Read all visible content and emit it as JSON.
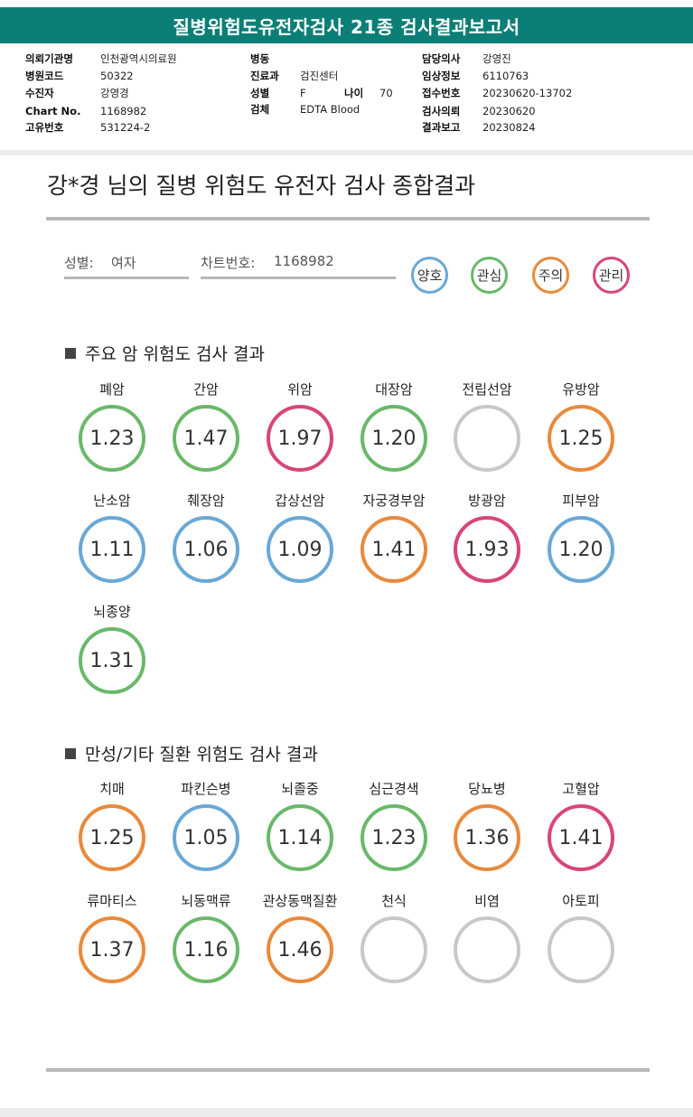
{
  "report": {
    "title": "질병위험도유전자검사 21종 검사결과보고서",
    "fields": {
      "institution_label": "의뢰기관명",
      "institution": "인천광역시의료원",
      "hospital_code_label": "병원코드",
      "hospital_code": "50322",
      "patient_label": "수진자",
      "patient": "강영경",
      "chart_label": "Chart No.",
      "chart": "1168982",
      "unique_label": "고유번호",
      "unique": "531224-2",
      "ward_label": "병동",
      "ward": "",
      "dept_label": "진료과",
      "dept": "검진센터",
      "sex_label": "성별",
      "sex": "F",
      "age_label": "나이",
      "age": "70",
      "specimen_label": "검체",
      "specimen": "EDTA Blood",
      "doctor_label": "담당의사",
      "doctor": "강영진",
      "clinical_label": "임상정보",
      "clinical": "6110763",
      "receipt_label": "접수번호",
      "receipt": "20230620-13702",
      "request_label": "검사의뢰",
      "request": "20230620",
      "result_label": "결과보고",
      "result": "20230824"
    }
  },
  "summary": {
    "heading": "강*경 님의 질병 위험도 유전자 검사 종합결과",
    "sex_label": "성별:",
    "sex_value": "여자",
    "chart_label": "차트번호:",
    "chart_value": "1168982"
  },
  "legend": [
    {
      "label": "양호",
      "color": "#6aa8d6"
    },
    {
      "label": "관심",
      "color": "#6ab86a"
    },
    {
      "label": "주의",
      "color": "#e88a3c"
    },
    {
      "label": "관리",
      "color": "#d8457a"
    }
  ],
  "colors": {
    "good": "#6aa8d6",
    "interest": "#6ab86a",
    "caution": "#e88a3c",
    "manage": "#d8457a",
    "none": "#c8c8c8"
  },
  "cancer": {
    "title": "주요 암 위험도 검사 결과",
    "items": [
      {
        "name": "폐암",
        "value": "1.23",
        "level": "interest"
      },
      {
        "name": "간암",
        "value": "1.47",
        "level": "interest"
      },
      {
        "name": "위암",
        "value": "1.97",
        "level": "manage"
      },
      {
        "name": "대장암",
        "value": "1.20",
        "level": "interest"
      },
      {
        "name": "전립선암",
        "value": "",
        "level": "none"
      },
      {
        "name": "유방암",
        "value": "1.25",
        "level": "caution"
      },
      {
        "name": "난소암",
        "value": "1.11",
        "level": "good"
      },
      {
        "name": "췌장암",
        "value": "1.06",
        "level": "good"
      },
      {
        "name": "갑상선암",
        "value": "1.09",
        "level": "good"
      },
      {
        "name": "자궁경부암",
        "value": "1.41",
        "level": "caution"
      },
      {
        "name": "방광암",
        "value": "1.93",
        "level": "manage"
      },
      {
        "name": "피부암",
        "value": "1.20",
        "level": "good"
      },
      {
        "name": "뇌종양",
        "value": "1.31",
        "level": "interest"
      }
    ]
  },
  "chronic": {
    "title": "만성/기타 질환 위험도 검사 결과",
    "items": [
      {
        "name": "치매",
        "value": "1.25",
        "level": "caution"
      },
      {
        "name": "파킨슨병",
        "value": "1.05",
        "level": "good"
      },
      {
        "name": "뇌졸중",
        "value": "1.14",
        "level": "interest"
      },
      {
        "name": "심근경색",
        "value": "1.23",
        "level": "interest"
      },
      {
        "name": "당뇨병",
        "value": "1.36",
        "level": "caution"
      },
      {
        "name": "고혈압",
        "value": "1.41",
        "level": "manage"
      },
      {
        "name": "류마티스",
        "value": "1.37",
        "level": "caution"
      },
      {
        "name": "뇌동맥류",
        "value": "1.16",
        "level": "interest"
      },
      {
        "name": "관상동맥질환",
        "value": "1.46",
        "level": "caution"
      },
      {
        "name": "천식",
        "value": "",
        "level": "none"
      },
      {
        "name": "비염",
        "value": "",
        "level": "none"
      },
      {
        "name": "아토피",
        "value": "",
        "level": "none"
      }
    ]
  }
}
